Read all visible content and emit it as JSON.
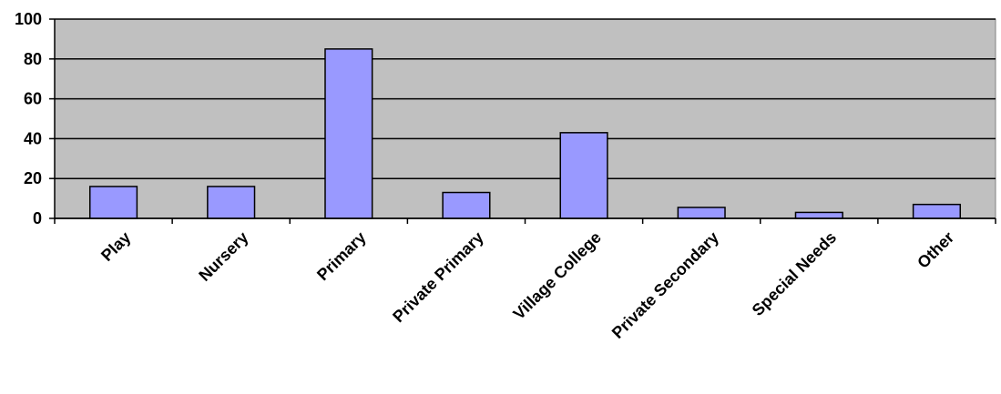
{
  "chart_data": {
    "type": "bar",
    "categories": [
      "Play",
      "Nursery",
      "Primary",
      "Private Primary",
      "Village College",
      "Private Secondary",
      "Special Needs",
      "Other"
    ],
    "values": [
      16,
      16,
      85,
      13,
      43,
      5.5,
      3,
      7
    ],
    "color": "#9999ff",
    "ylim": [
      0,
      100
    ],
    "yticks": [
      0,
      20,
      40,
      60,
      80,
      100
    ],
    "grid": true
  }
}
